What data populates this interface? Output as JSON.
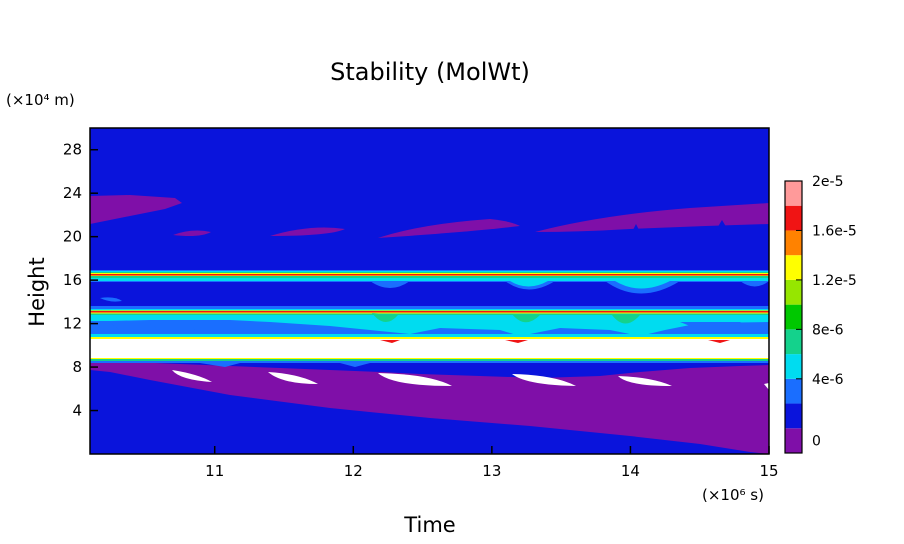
{
  "chart_data": {
    "type": "heatmap",
    "title": "Stability (MolWt)",
    "xlabel": "Time",
    "ylabel": "Height",
    "x_unit": "(×10⁶ s)",
    "y_unit": "(×10⁴ m)",
    "xlim": [
      10.1,
      15.0
    ],
    "ylim": [
      0,
      30
    ],
    "x_ticks": [
      "11",
      "12",
      "13",
      "14",
      "15"
    ],
    "y_ticks": [
      "4",
      "8",
      "12",
      "16",
      "20",
      "24",
      "28"
    ],
    "colorbar": {
      "labels": [
        "2e-5",
        "1.6e-5",
        "1.2e-5",
        "8e-6",
        "4e-6",
        "0"
      ],
      "levels": [
        0,
        2e-06,
        4e-06,
        6e-06,
        8e-06,
        1e-05,
        1.2e-05,
        1.4e-05,
        1.6e-05,
        1.8e-05,
        2e-05
      ],
      "colors": [
        "#7f0fa8",
        "#0a14dc",
        "#1a6eff",
        "#00dcf0",
        "#14d28c",
        "#00c800",
        "#96e600",
        "#ffff00",
        "#ff8200",
        "#f01414",
        "#ff9a9a"
      ]
    },
    "above_max_color": "#ffffff",
    "features": [
      {
        "band": "layer near 8.5",
        "value_range": [
          6e-06,
          2e-05
        ]
      },
      {
        "band": "layer near 10.5-11",
        "value": "> 2e-5"
      },
      {
        "band": "layer near 12.5-13.2",
        "value_range": [
          4e-06,
          2e-05
        ]
      },
      {
        "band": "layer near 16.3",
        "value_range": [
          4e-06,
          2e-05
        ]
      },
      {
        "band": "upper background",
        "value_range": [
          2e-06,
          4e-06
        ]
      },
      {
        "band": "lower region",
        "value_range": [
          0,
          2e-06
        ]
      }
    ]
  }
}
